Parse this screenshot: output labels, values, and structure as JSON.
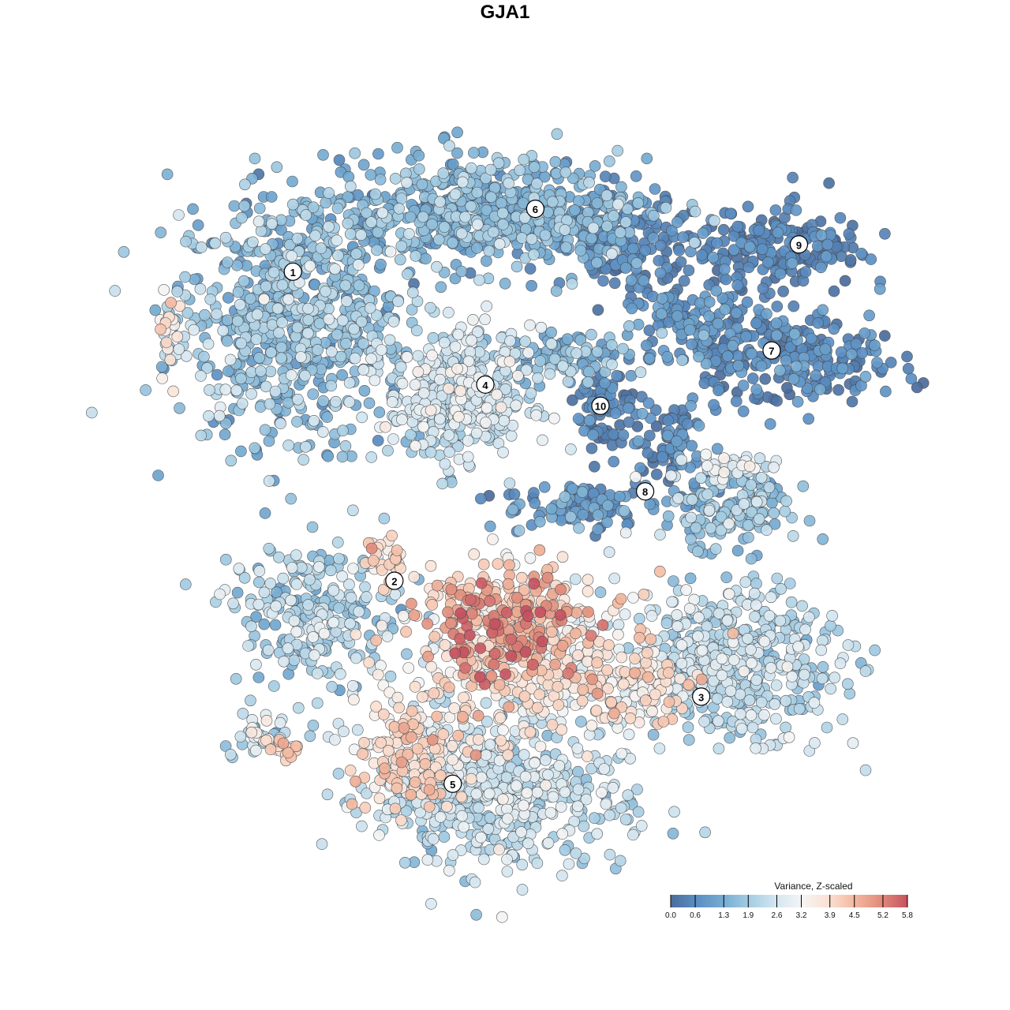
{
  "chart_data": {
    "type": "scatter",
    "title": "GJA1",
    "xlabel": "",
    "ylabel": "",
    "xlim": [
      -50,
      50
    ],
    "ylim": [
      -50,
      50
    ],
    "grid": false,
    "legend": {
      "title": "Variance, Z-scaled",
      "placement": "bottom-right",
      "ticks": [
        "0.0",
        "0.6",
        "1.3",
        "1.9",
        "2.6",
        "3.2",
        "3.9",
        "4.5",
        "5.2",
        "5.8"
      ],
      "range": [
        0,
        5.8
      ],
      "colors": [
        "#4b6c9c",
        "#5b8fc4",
        "#76acd2",
        "#a5cde3",
        "#d4e6f0",
        "#f5f5f5",
        "#fbe0d2",
        "#f3b89f",
        "#e08b7b",
        "#c65261"
      ]
    },
    "cluster_labels": [
      {
        "label": "1",
        "x": -28.0,
        "y": 30.8
      },
      {
        "label": "2",
        "x": -14.6,
        "y": -10.0
      },
      {
        "label": "3",
        "x": 25.9,
        "y": -25.3
      },
      {
        "label": "4",
        "x": -2.6,
        "y": 15.9
      },
      {
        "label": "5",
        "x": -6.9,
        "y": -36.8
      },
      {
        "label": "6",
        "x": 4.0,
        "y": 39.1
      },
      {
        "label": "7",
        "x": 35.2,
        "y": 20.4
      },
      {
        "label": "8",
        "x": 18.5,
        "y": 1.8
      },
      {
        "label": "9",
        "x": 38.8,
        "y": 34.4
      },
      {
        "label": "10",
        "x": 12.6,
        "y": 13.1
      }
    ],
    "point_groups": [
      {
        "cluster": "1",
        "x": -28.1,
        "y": 25.0,
        "sx": 7.8,
        "sy": 8.3,
        "n": 700,
        "value": 1.6,
        "sd": 0.55
      },
      {
        "cluster": "6",
        "x": -2.1,
        "y": 38.5,
        "sx": 10.4,
        "sy": 3.6,
        "n": 600,
        "value": 1.4,
        "sd": 0.5
      },
      {
        "cluster": "6",
        "x": 15.6,
        "y": 34.4,
        "sx": 4.2,
        "sy": 3.1,
        "n": 150,
        "value": 0.5,
        "sd": 0.3
      },
      {
        "cluster": "9",
        "x": 35.9,
        "y": 33.9,
        "sx": 5.7,
        "sy": 2.6,
        "n": 200,
        "value": 0.4,
        "sd": 0.3
      },
      {
        "cluster": "7",
        "x": 37.5,
        "y": 19.8,
        "sx": 7.3,
        "sy": 3.1,
        "n": 250,
        "value": 0.5,
        "sd": 0.35
      },
      {
        "cluster": "7",
        "x": 25.0,
        "y": 24.0,
        "sx": 4.2,
        "sy": 3.1,
        "n": 120,
        "value": 0.7,
        "sd": 0.4
      },
      {
        "cluster": "4",
        "x": -6.3,
        "y": 14.6,
        "sx": 4.7,
        "sy": 4.2,
        "n": 400,
        "value": 2.4,
        "sd": 0.45
      },
      {
        "cluster": "4",
        "x": 8.3,
        "y": 19.8,
        "sx": 4.2,
        "sy": 1.6,
        "n": 80,
        "value": 1.6,
        "sd": 0.5
      },
      {
        "cluster": "10",
        "x": 13.0,
        "y": 13.5,
        "sx": 1.9,
        "sy": 3.1,
        "n": 80,
        "value": 0.4,
        "sd": 0.3
      },
      {
        "cluster": "8",
        "x": 21.9,
        "y": 8.3,
        "sx": 2.6,
        "sy": 3.1,
        "n": 80,
        "value": 0.5,
        "sd": 0.35
      },
      {
        "cluster": "8",
        "x": 29.2,
        "y": -1.0,
        "sx": 4.2,
        "sy": 2.6,
        "n": 150,
        "value": 1.6,
        "sd": 0.5
      },
      {
        "cluster": "8",
        "x": 29.2,
        "y": 5.2,
        "sx": 3.6,
        "sy": 1.0,
        "n": 40,
        "value": 2.8,
        "sd": 0.3
      },
      {
        "cluster": "8",
        "x": 10.4,
        "y": 0.0,
        "sx": 5.2,
        "sy": 1.6,
        "n": 100,
        "value": 0.8,
        "sd": 0.5
      },
      {
        "cluster": "2",
        "x": -25.0,
        "y": -14.6,
        "sx": 5.7,
        "sy": 4.7,
        "n": 250,
        "value": 2.0,
        "sd": 0.5
      },
      {
        "cluster": "2",
        "x": -15.6,
        "y": -7.3,
        "sx": 2.1,
        "sy": 1.3,
        "n": 30,
        "value": 3.8,
        "sd": 0.4
      },
      {
        "cluster": "center",
        "x": 0.0,
        "y": -15.6,
        "sx": 5.2,
        "sy": 3.6,
        "n": 250,
        "value": 4.6,
        "sd": 0.7
      },
      {
        "cluster": "center",
        "x": 2.1,
        "y": -20.8,
        "sx": 9.4,
        "sy": 6.3,
        "n": 400,
        "value": 3.4,
        "sd": 0.6
      },
      {
        "cluster": "3",
        "x": 30.2,
        "y": -20.8,
        "sx": 6.8,
        "sy": 4.7,
        "n": 500,
        "value": 2.2,
        "sd": 0.45
      },
      {
        "cluster": "3",
        "x": 16.7,
        "y": -24.0,
        "sx": 4.2,
        "sy": 2.6,
        "n": 80,
        "value": 3.7,
        "sd": 0.5
      },
      {
        "cluster": "5",
        "x": -1.0,
        "y": -38.5,
        "sx": 8.3,
        "sy": 4.7,
        "n": 500,
        "value": 2.3,
        "sd": 0.45
      },
      {
        "cluster": "5",
        "x": -12.5,
        "y": -33.3,
        "sx": 3.6,
        "sy": 3.6,
        "n": 150,
        "value": 3.8,
        "sd": 0.5
      },
      {
        "cluster": "isolated",
        "x": -31.3,
        "y": -30.2,
        "sx": 3.1,
        "sy": 1.6,
        "n": 40,
        "value": 2.6,
        "sd": 0.6
      },
      {
        "cluster": "isolated",
        "x": -29.2,
        "y": -32.3,
        "sx": 1.3,
        "sy": 0.8,
        "n": 15,
        "value": 4.2,
        "sd": 0.3
      },
      {
        "cluster": "1",
        "x": -44.3,
        "y": 22.9,
        "sx": 0.8,
        "sy": 2.6,
        "n": 30,
        "value": 3.0,
        "sd": 0.6
      }
    ]
  }
}
